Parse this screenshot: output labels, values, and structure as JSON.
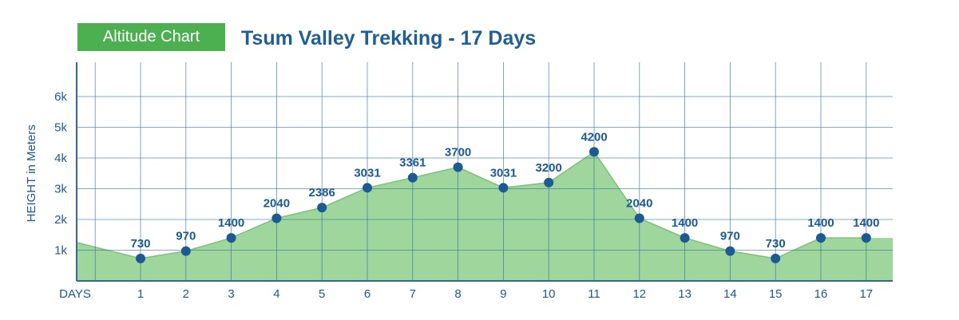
{
  "header": {
    "badge": "Altitude Chart",
    "title": "Tsum Valley Trekking - 17 Days"
  },
  "colors": {
    "badge": "#4caf50",
    "title": "#1f5f94",
    "grid": "#2f6a9a",
    "area_fill": "#9fd69b",
    "area_stroke": "#7cc278",
    "points": "#1c5a93",
    "labels": "#1c5a93"
  },
  "chart_data": {
    "type": "area",
    "ylabel": "HEIGHT in Meters",
    "xlabel": "DAYS",
    "x": [
      1,
      2,
      3,
      4,
      5,
      6,
      7,
      8,
      9,
      10,
      11,
      12,
      13,
      14,
      15,
      16,
      17
    ],
    "x_tick_labels": [
      "1",
      "2",
      "3",
      "4",
      "5",
      "6",
      "7",
      "8",
      "9",
      "10",
      "11",
      "12",
      "13",
      "14",
      "15",
      "16",
      "17"
    ],
    "values": [
      730,
      970,
      1400,
      2040,
      2386,
      3031,
      3361,
      3700,
      3031,
      3200,
      4200,
      2040,
      1400,
      970,
      730,
      1400,
      1400
    ],
    "data_labels": [
      "730",
      "970",
      "1400",
      "2040",
      "2386",
      "3031",
      "3361",
      "3700",
      "3031",
      "3200",
      "4200",
      "2040",
      "1400",
      "970",
      "730",
      "1400",
      "1400"
    ],
    "y_ticks": [
      1000,
      2000,
      3000,
      4000,
      5000,
      6000
    ],
    "y_tick_labels": [
      "1k",
      "2k",
      "3k",
      "4k",
      "5k",
      "6k"
    ],
    "ylim": [
      0,
      7000
    ],
    "grid": true
  }
}
